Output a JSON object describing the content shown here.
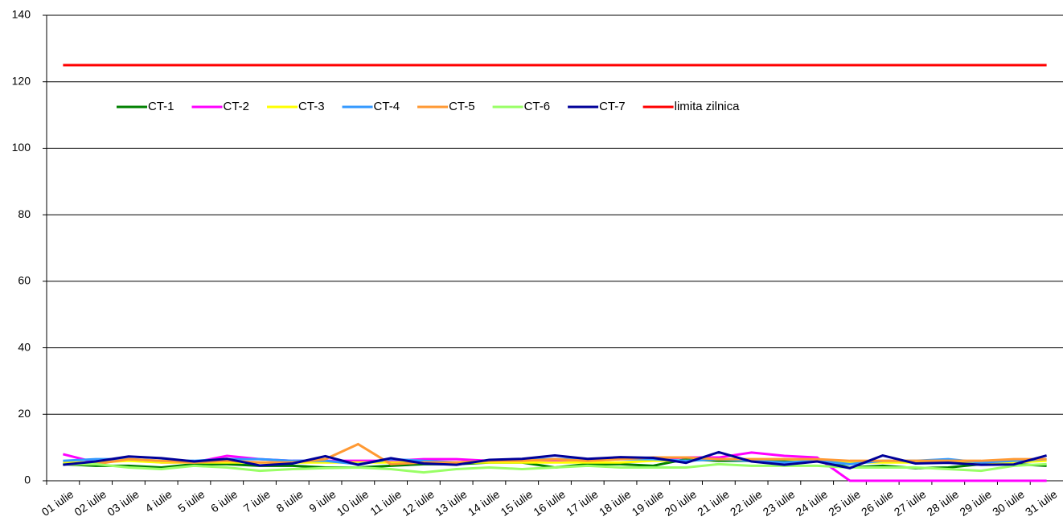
{
  "chart_data": {
    "type": "line",
    "categories": [
      "01 iulie",
      "02 iulie",
      "03 iulie",
      "4 iulie",
      "5 iulie",
      "6 iulie",
      "7 iulie",
      "8 iulie",
      "9 iulie",
      "10 iulie",
      "11 iulie",
      "12 iulie",
      "13 iulie",
      "14 iulie",
      "15 iulie",
      "16 iulie",
      "17 iulie",
      "18 iulie",
      "19 iulie",
      "20 iulie",
      "21 iulie",
      "22 iulie",
      "23 iulie",
      "24 iulie",
      "25 iulie",
      "26 iulie",
      "27 iulie",
      "28 iulie",
      "29 iulie",
      "30 iulie",
      "31 iulie"
    ],
    "series": [
      {
        "name": "CT-1",
        "color": "#008000",
        "values": [
          5,
          4.5,
          4.5,
          4,
          5,
          5,
          4.5,
          4.5,
          4,
          4,
          4.5,
          5,
          5,
          5.5,
          5.5,
          4,
          5,
          5,
          4.5,
          6.5,
          6,
          6,
          6,
          6,
          4,
          4.5,
          3.8,
          4,
          5,
          5,
          4.5
        ]
      },
      {
        "name": "CT-2",
        "color": "#ff00ff",
        "values": [
          8,
          5.5,
          6.5,
          5.5,
          5.5,
          7.5,
          6.5,
          6,
          6,
          6,
          6,
          6.5,
          6.5,
          6,
          6,
          6,
          6,
          6.5,
          6.5,
          7,
          7,
          8.5,
          7.5,
          7,
          0,
          0,
          0,
          0,
          0,
          0,
          0
        ]
      },
      {
        "name": "CT-3",
        "color": "#ffff00",
        "values": [
          5.5,
          5.5,
          6,
          5.5,
          5.5,
          5.5,
          5.5,
          5.5,
          5.5,
          5.5,
          5.5,
          5.5,
          5.5,
          5.5,
          5.5,
          5.5,
          5.5,
          5.5,
          6,
          6,
          6.5,
          6.5,
          6.5,
          6,
          5.5,
          5.5,
          5.5,
          5.5,
          5.5,
          5.5,
          6
        ]
      },
      {
        "name": "CT-4",
        "color": "#3399ff",
        "values": [
          6,
          6.5,
          6.5,
          6,
          6,
          6.5,
          6.5,
          6,
          6,
          5,
          6.5,
          6,
          5.5,
          6,
          6.5,
          6.5,
          6.5,
          6.5,
          6.5,
          6,
          6.5,
          6,
          5.5,
          6,
          5,
          6,
          6,
          6.5,
          5.5,
          6,
          6.5
        ]
      },
      {
        "name": "CT-5",
        "color": "#ff9933",
        "values": [
          5,
          5,
          6.5,
          6,
          5.5,
          6,
          5.5,
          5.5,
          6.5,
          11,
          5,
          5.5,
          5.5,
          6,
          6,
          6.5,
          6,
          6.5,
          7,
          7,
          6.5,
          6.5,
          6.5,
          6.5,
          6,
          6,
          6,
          6,
          6,
          6.5,
          6.5
        ]
      },
      {
        "name": "CT-6",
        "color": "#99ff66",
        "values": [
          5,
          5,
          4,
          3.5,
          4.5,
          4,
          3,
          3.5,
          3.8,
          4,
          3.5,
          2.5,
          3.5,
          4,
          3.5,
          4,
          4.5,
          4,
          4,
          4,
          5,
          4.5,
          4.5,
          4.5,
          4,
          4,
          4,
          3.5,
          3,
          4.5,
          5
        ]
      },
      {
        "name": "CT-7",
        "color": "#000099",
        "values": [
          4.8,
          5.8,
          7.3,
          6.8,
          5.8,
          6.6,
          4.6,
          5.2,
          7.4,
          4.8,
          6.8,
          5.2,
          4.8,
          6.3,
          6.6,
          7.6,
          6.6,
          7.1,
          6.9,
          5.4,
          8.6,
          5.8,
          4.8,
          5.8,
          3.8,
          7.6,
          5.2,
          5.4,
          4.8,
          4.9,
          7.6
        ]
      },
      {
        "name": "limita zilnica",
        "color": "#ff0000",
        "values": [
          125,
          125,
          125,
          125,
          125,
          125,
          125,
          125,
          125,
          125,
          125,
          125,
          125,
          125,
          125,
          125,
          125,
          125,
          125,
          125,
          125,
          125,
          125,
          125,
          125,
          125,
          125,
          125,
          125,
          125,
          125
        ]
      }
    ],
    "ylim": [
      0,
      140
    ],
    "yticks": [
      0,
      20,
      40,
      60,
      80,
      100,
      120,
      140
    ],
    "grid": true,
    "legend": "upper left"
  }
}
